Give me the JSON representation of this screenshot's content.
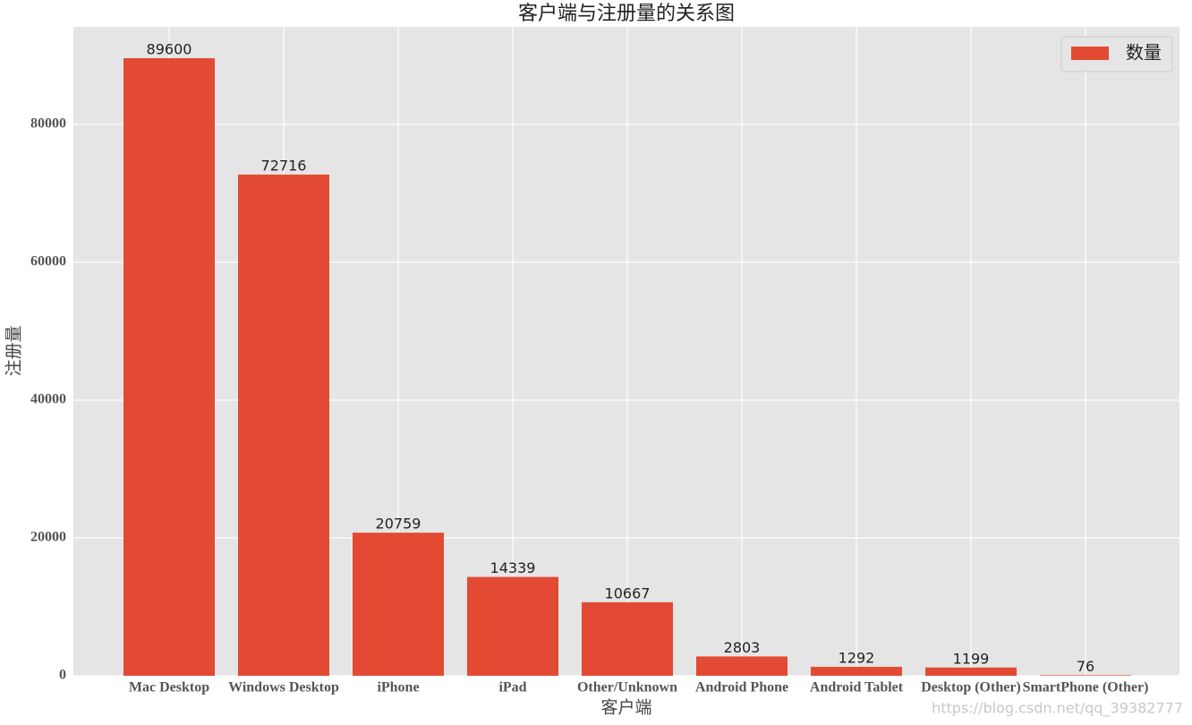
{
  "chart_data": {
    "type": "bar",
    "title": "客户端与注册量的关系图",
    "x_label": "客户端",
    "y_label": "注册量",
    "categories": [
      "Mac Desktop",
      "Windows Desktop",
      "iPhone",
      "iPad",
      "Other/Unknown",
      "Android Phone",
      "Android Tablet",
      "Desktop (Other)",
      "SmartPhone (Other)"
    ],
    "series": [
      {
        "name": "数量",
        "color": "#e24a33",
        "values": [
          89600,
          72716,
          20759,
          14339,
          10667,
          2803,
          1292,
          1199,
          76
        ]
      }
    ],
    "ylim": [
      0,
      94150
    ],
    "yticks": [
      0,
      20000,
      40000,
      60000,
      80000
    ],
    "grid": true,
    "legend": "upper right",
    "watermark": "https://blog.csdn.net/qq_39382777"
  }
}
